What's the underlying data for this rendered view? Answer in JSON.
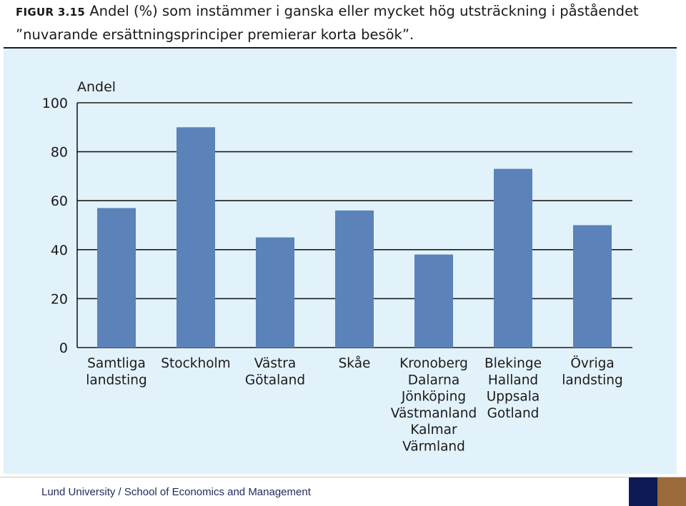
{
  "figure": {
    "label": "FIGUR 3.15",
    "title_line1": "Andel (%) som instämmer i ganska eller mycket hög utsträckning i påståendet",
    "title_line2": "”nuvarande ersättningsprinciper premierar korta besök”."
  },
  "chart_data": {
    "type": "bar",
    "ylabel": "Andel",
    "ylim": [
      0,
      100
    ],
    "yticks": [
      "0",
      "20",
      "40",
      "60",
      "80",
      "100"
    ],
    "grid": true,
    "bar_color": "#5b82b9",
    "categories": [
      [
        "Samtliga",
        "landsting"
      ],
      [
        "Stockholm"
      ],
      [
        "Västra",
        "Götaland"
      ],
      [
        "Skåe"
      ],
      [
        "Kronoberg",
        "Dalarna",
        "Jönköping",
        "Västmanland",
        "Kalmar",
        "Värmland"
      ],
      [
        "Blekinge",
        "Halland",
        "Uppsala",
        "Gotland"
      ],
      [
        "Övriga",
        "landsting"
      ]
    ],
    "values": [
      57,
      90,
      45,
      56,
      38,
      73,
      50
    ]
  },
  "footer": {
    "text": "Lund University / School of Economics and Management"
  }
}
